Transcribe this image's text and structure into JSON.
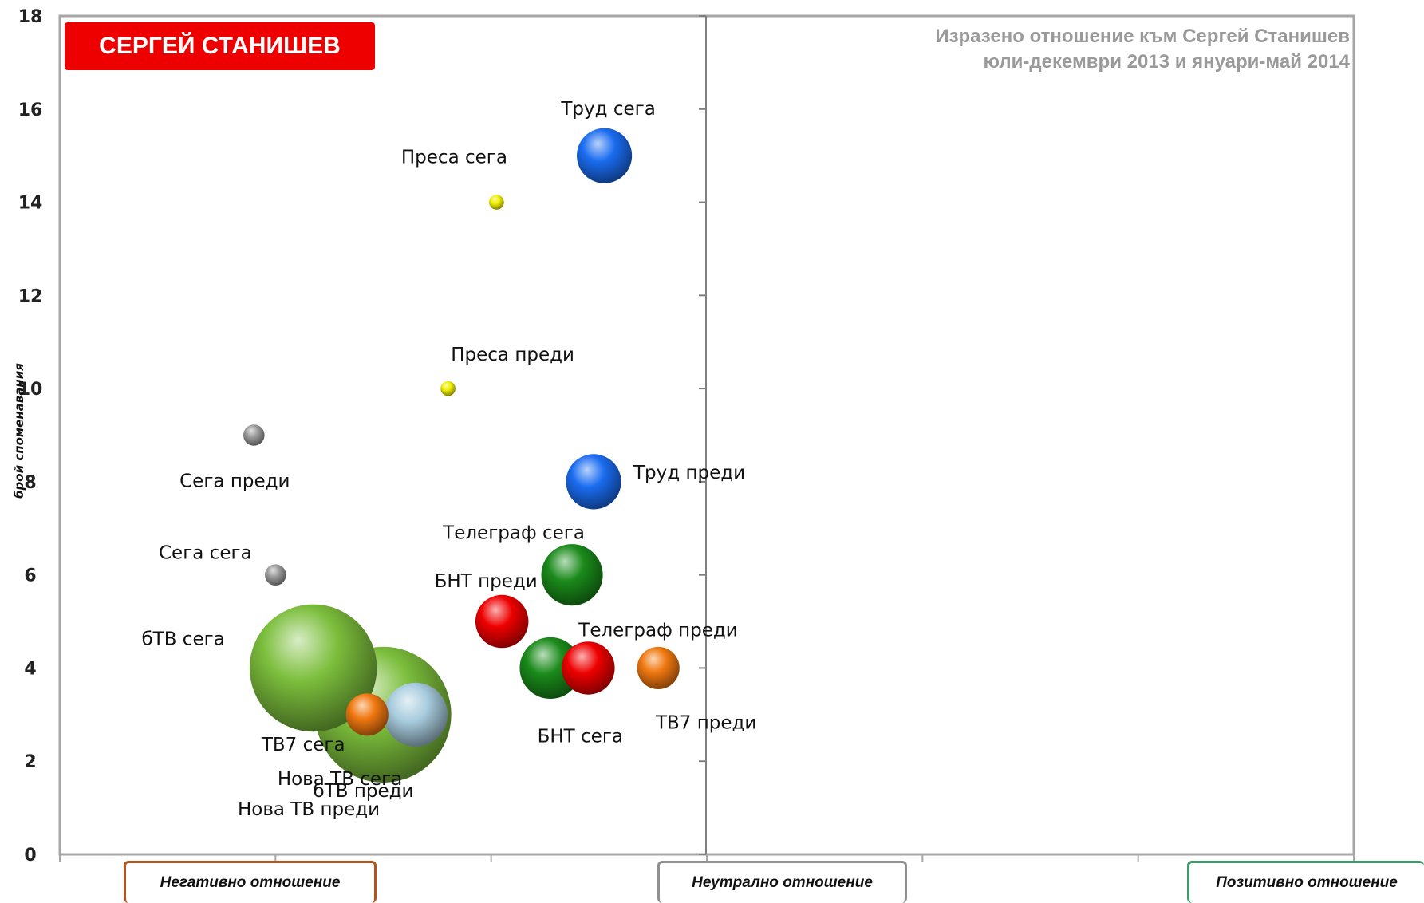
{
  "header": {
    "name": "СЕРГЕЙ СТАНИШЕВ",
    "subtitle_line1": "Изразено отношение към Сергей Станишев",
    "subtitle_line2": "юли-декември 2013 и януари-май 2014"
  },
  "attitude_labels": {
    "negative": "Негативно отношение",
    "neutral": "Неутрално отношение",
    "positive": "Позитивно отношение"
  },
  "chart_data": {
    "type": "bubble",
    "title": "Изразено отношение към Сергей Станишев юли-декември 2013 и януари-май 2014",
    "ylabel": "брой споменавания",
    "xlabel": "",
    "ylim": [
      0,
      18
    ],
    "y_ticks": [
      "0",
      "2",
      "4",
      "6",
      "8",
      "10",
      "12",
      "14",
      "16",
      "18"
    ],
    "xlim": [
      -1,
      1.4
    ],
    "grid": false,
    "points": [
      {
        "label": "бТВ преди",
        "x": -0.4,
        "y": 3,
        "size": 6.4,
        "color": "#7cbe3c"
      },
      {
        "label": "бТВ сега",
        "x": -0.53,
        "y": 4,
        "size": 6.0,
        "color": "#7cbe3c"
      },
      {
        "label": "Нова ТВ преди",
        "x": -0.34,
        "y": 3,
        "size": 3.0,
        "color": "#a8ccde"
      },
      {
        "label": "Нова ТВ сега",
        "x": -0.34,
        "y": 3,
        "size": 3.0,
        "color": "#a8ccde"
      },
      {
        "label": "ТВ7 сега",
        "x": -0.43,
        "y": 3,
        "size": 2.0,
        "color": "#f07810"
      },
      {
        "label": "ТВ7 преди",
        "x": 0.11,
        "y": 4,
        "size": 2.0,
        "color": "#f07810"
      },
      {
        "label": "БНТ сега",
        "x": -0.02,
        "y": 4,
        "size": 2.5,
        "color": "#ee0000"
      },
      {
        "label": "БНТ преди",
        "x": -0.18,
        "y": 5,
        "size": 2.5,
        "color": "#ee0000"
      },
      {
        "label": "Телеграф сега",
        "x": -0.05,
        "y": 6,
        "size": 2.9,
        "color": "#1a8a1a"
      },
      {
        "label": "Телеграф преди",
        "x": -0.09,
        "y": 4,
        "size": 2.9,
        "color": "#1a8a1a"
      },
      {
        "label": "Труд сега",
        "x": 0.01,
        "y": 15,
        "size": 2.6,
        "color": "#1a6cf0"
      },
      {
        "label": "Труд преди",
        "x": -0.01,
        "y": 8,
        "size": 2.6,
        "color": "#1a6cf0"
      },
      {
        "label": "Преса сега",
        "x": -0.19,
        "y": 14,
        "size": 0.7,
        "color": "#f0f000"
      },
      {
        "label": "Преса преди",
        "x": -0.28,
        "y": 10,
        "size": 0.7,
        "color": "#f0f000"
      },
      {
        "label": "Сега преди",
        "x": -0.64,
        "y": 9,
        "size": 1.0,
        "color": "#9a9a9a"
      },
      {
        "label": "Сега сега",
        "x": -0.6,
        "y": 6,
        "size": 1.0,
        "color": "#9a9a9a"
      }
    ]
  }
}
